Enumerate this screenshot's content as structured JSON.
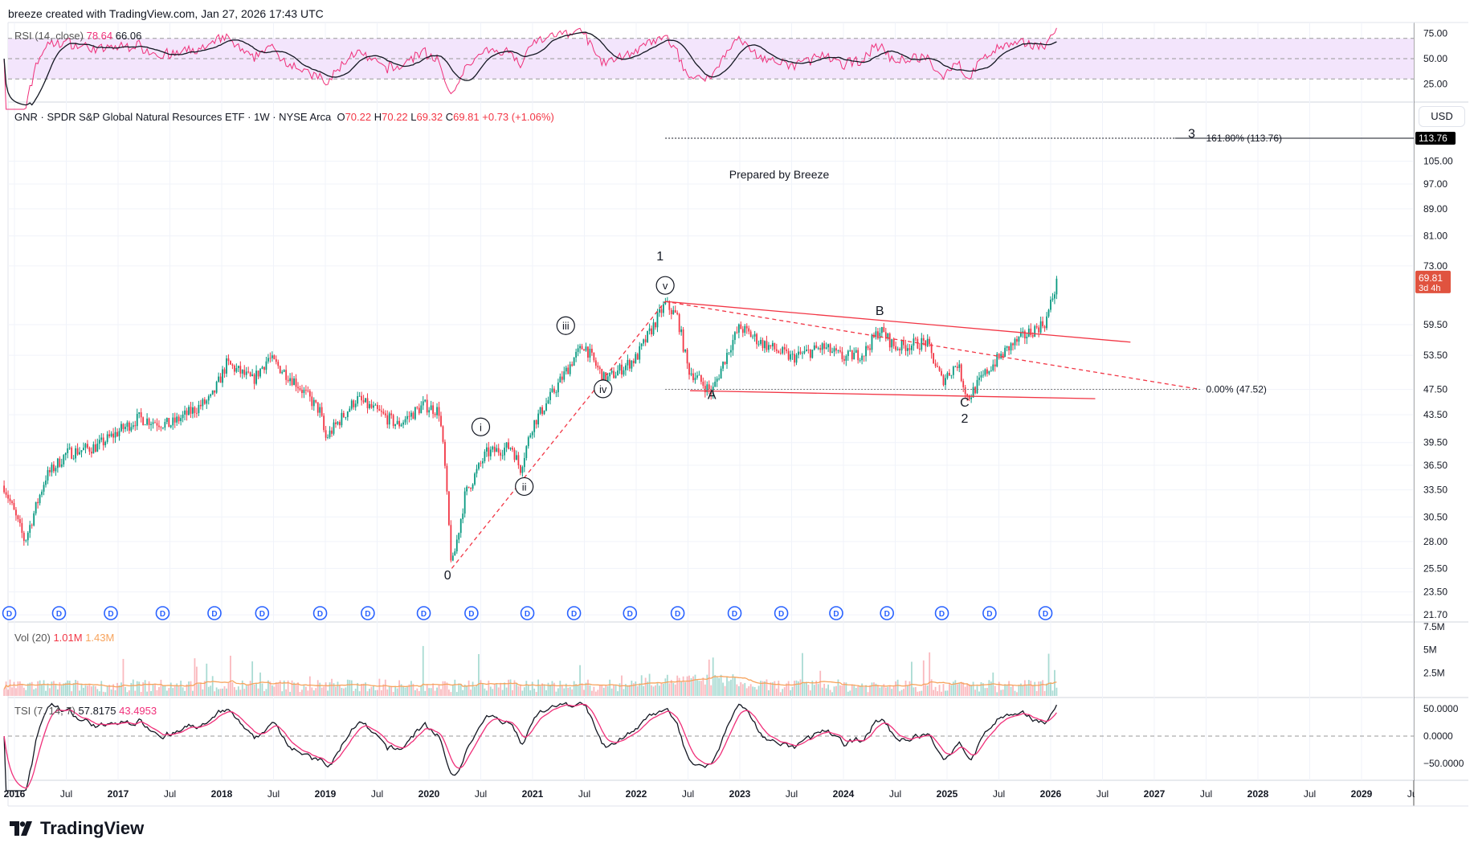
{
  "header": {
    "attribution": "breeze created with TradingView.com, Jan 27, 2026 17:43 UTC"
  },
  "logo": {
    "text": "TradingView"
  },
  "currency_button": "USD",
  "legend": {
    "symbol": "GNR · SPDR S&P Global Natural Resources ETF · 1W · NYSE Arca",
    "o_label": "O",
    "o": "70.22",
    "h_label": "H",
    "h": "70.22",
    "l_label": "L",
    "l": "69.32",
    "c_label": "C",
    "c": "69.81",
    "change": "+0.73 (+1.06%)"
  },
  "rsi": {
    "label": "RSI (14, close)",
    "value": "78.64",
    "ma": "66.06",
    "ticks": [
      "75.00",
      "50.00",
      "25.00"
    ]
  },
  "volume": {
    "label": "Vol (20)",
    "value": "1.01M",
    "ma": "1.43M",
    "ticks": [
      "7.5M",
      "5M",
      "2.5M"
    ]
  },
  "tsi": {
    "label": "TSI (7, 14, 7)",
    "value": "57.8175",
    "signal": "43.4953",
    "ticks": [
      "50.0000",
      "0.0000",
      "−50.0000"
    ]
  },
  "colors": {
    "up": "#089981",
    "down": "#f23645",
    "rsi": "#f0307a",
    "rsi_band": "#f3e5fc",
    "annotation": "#f23645",
    "last_price": "#e0533f",
    "vol_ma": "#f7a35c",
    "dividend": "#2962ff"
  },
  "chart_data": {
    "type": "candlestick",
    "scale": "log",
    "ylim": [
      21.7,
      113.76
    ],
    "price_ticks": [
      "105.00",
      "97.00",
      "89.00",
      "81.00",
      "73.00",
      "59.50",
      "53.50",
      "47.50",
      "43.50",
      "39.50",
      "36.50",
      "33.50",
      "30.50",
      "28.00",
      "25.50",
      "23.50",
      "21.70"
    ],
    "last_price": "69.81",
    "countdown": "3d 4h",
    "target_price": "113.76",
    "time_ticks": [
      "2016",
      "Jul",
      "2017",
      "Jul",
      "2018",
      "Jul",
      "2019",
      "Jul",
      "2020",
      "Jul",
      "2021",
      "Jul",
      "2022",
      "Jul",
      "2023",
      "Jul",
      "2024",
      "Jul",
      "2025",
      "Jul",
      "2026",
      "Jul",
      "2027",
      "Jul",
      "2028",
      "Jul",
      "2029",
      "Jul"
    ],
    "approx_close_path": [
      [
        2015.9,
        34
      ],
      [
        2016.1,
        28
      ],
      [
        2016.3,
        35
      ],
      [
        2016.5,
        38
      ],
      [
        2016.8,
        39
      ],
      [
        2017.0,
        41
      ],
      [
        2017.2,
        43
      ],
      [
        2017.5,
        42
      ],
      [
        2017.9,
        46
      ],
      [
        2018.05,
        52
      ],
      [
        2018.3,
        49
      ],
      [
        2018.45,
        53
      ],
      [
        2018.7,
        49
      ],
      [
        2018.95,
        44
      ],
      [
        2019.0,
        40
      ],
      [
        2019.3,
        46
      ],
      [
        2019.7,
        42
      ],
      [
        2019.95,
        45
      ],
      [
        2020.1,
        44
      ],
      [
        2020.15,
        37
      ],
      [
        2020.22,
        25.5
      ],
      [
        2020.35,
        33
      ],
      [
        2020.55,
        38
      ],
      [
        2020.8,
        39
      ],
      [
        2020.88,
        36
      ],
      [
        2021.0,
        42
      ],
      [
        2021.2,
        47
      ],
      [
        2021.4,
        53
      ],
      [
        2021.5,
        55.5
      ],
      [
        2021.6,
        52
      ],
      [
        2021.7,
        49
      ],
      [
        2022.0,
        53
      ],
      [
        2022.28,
        64
      ],
      [
        2022.4,
        61
      ],
      [
        2022.5,
        51
      ],
      [
        2022.73,
        47
      ],
      [
        2022.9,
        55
      ],
      [
        2023.0,
        59
      ],
      [
        2023.2,
        56
      ],
      [
        2023.5,
        53
      ],
      [
        2023.8,
        55
      ],
      [
        2024.0,
        53
      ],
      [
        2024.2,
        54
      ],
      [
        2024.35,
        58.5
      ],
      [
        2024.5,
        55
      ],
      [
        2024.8,
        56
      ],
      [
        2024.95,
        49
      ],
      [
        2025.1,
        52
      ],
      [
        2025.2,
        46
      ],
      [
        2025.4,
        51
      ],
      [
        2025.6,
        55
      ],
      [
        2025.8,
        58
      ],
      [
        2025.95,
        60
      ],
      [
        2026.07,
        69.8
      ]
    ],
    "annotations": {
      "note": {
        "text": "Prepared by Breeze",
        "t": 2023.38,
        "price": 100.3
      },
      "wave_labels": [
        {
          "text": "1",
          "t": 2022.23,
          "price": 75.4,
          "circled": false
        },
        {
          "text": "v",
          "t": 2022.28,
          "price": 68.2,
          "circled": true
        },
        {
          "text": "iii",
          "t": 2021.32,
          "price": 59.3,
          "circled": true
        },
        {
          "text": "iv",
          "t": 2021.68,
          "price": 47.6,
          "circled": true
        },
        {
          "text": "i",
          "t": 2020.5,
          "price": 41.7,
          "circled": true
        },
        {
          "text": "ii",
          "t": 2020.92,
          "price": 33.9,
          "circled": true
        },
        {
          "text": "0",
          "t": 2020.18,
          "price": 24.9,
          "circled": false
        },
        {
          "text": "A",
          "t": 2022.73,
          "price": 46.6,
          "circled": false
        },
        {
          "text": "B",
          "t": 2024.35,
          "price": 62.4,
          "circled": false
        },
        {
          "text": "C",
          "t": 2025.17,
          "price": 45.4,
          "circled": false
        },
        {
          "text": "2",
          "t": 2025.17,
          "price": 42.9,
          "circled": false
        },
        {
          "text": "3",
          "t": 2027.36,
          "price": 115.5,
          "circled": false
        }
      ],
      "fib_levels": [
        {
          "label": "161.80% (113.76)",
          "price": 113.76
        },
        {
          "label": "0.00% (47.52)",
          "price": 47.52
        }
      ],
      "lines": [
        {
          "from": [
            2020.22,
            25.5
          ],
          "to": [
            2022.28,
            64.5
          ],
          "style": "dashed"
        },
        {
          "from": [
            2022.28,
            64.5
          ],
          "to": [
            2026.77,
            56
          ],
          "style": "solid"
        },
        {
          "from": [
            2022.28,
            64.5
          ],
          "to": [
            2027.41,
            47.6
          ],
          "style": "dashed"
        },
        {
          "from": [
            2022.52,
            47.3
          ],
          "to": [
            2026.43,
            46.0
          ],
          "style": "solid"
        }
      ]
    },
    "dividend_marker": "D",
    "dividend_dates": [
      2015.95,
      2016.43,
      2016.93,
      2017.43,
      2017.93,
      2018.39,
      2018.95,
      2019.41,
      2019.95,
      2020.41,
      2020.95,
      2021.4,
      2021.94,
      2022.4,
      2022.95,
      2023.4,
      2023.93,
      2024.42,
      2024.95,
      2025.41,
      2025.95
    ]
  }
}
